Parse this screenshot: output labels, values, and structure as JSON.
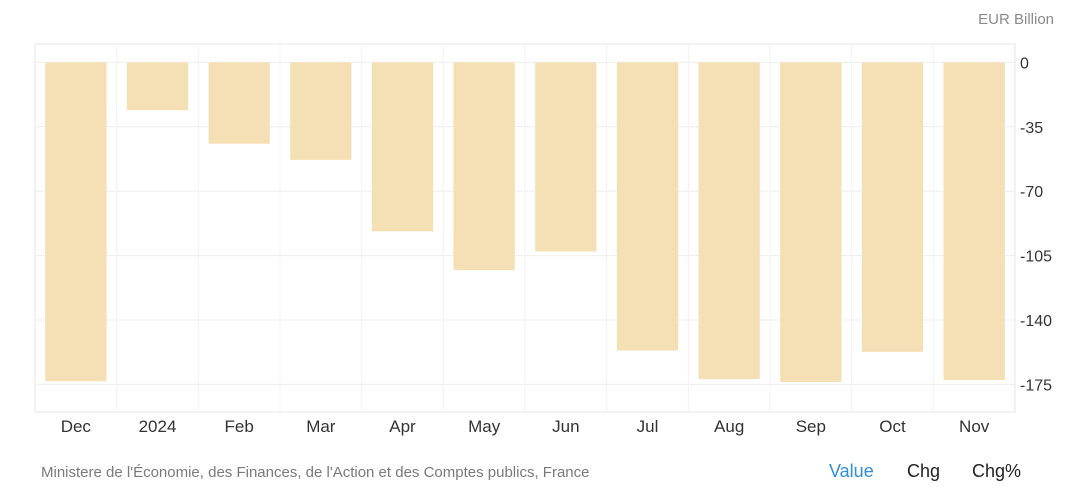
{
  "chart_data": {
    "type": "bar",
    "unit_label": "EUR Billion",
    "categories": [
      "Dec",
      "2024",
      "Feb",
      "Mar",
      "Apr",
      "May",
      "Jun",
      "Jul",
      "Aug",
      "Sep",
      "Oct",
      "Nov"
    ],
    "values": [
      -173.3,
      -26.0,
      -44.2,
      -53.0,
      -91.8,
      -112.9,
      -102.8,
      -156.6,
      -172.1,
      -173.7,
      -157.3,
      -172.6
    ],
    "y_ticks": [
      0,
      -35,
      -70,
      -105,
      -140,
      -175
    ],
    "ylim": [
      -190,
      10
    ],
    "grid": true,
    "bar_color": "#f5dfb5"
  },
  "footer": {
    "source": "Ministere de l'Économie, des Finances, de l'Action et des Comptes publics, France",
    "toggles": [
      "Value",
      "Chg",
      "Chg%"
    ],
    "active_toggle": "Value",
    "active_color": "#2f8fd8"
  }
}
